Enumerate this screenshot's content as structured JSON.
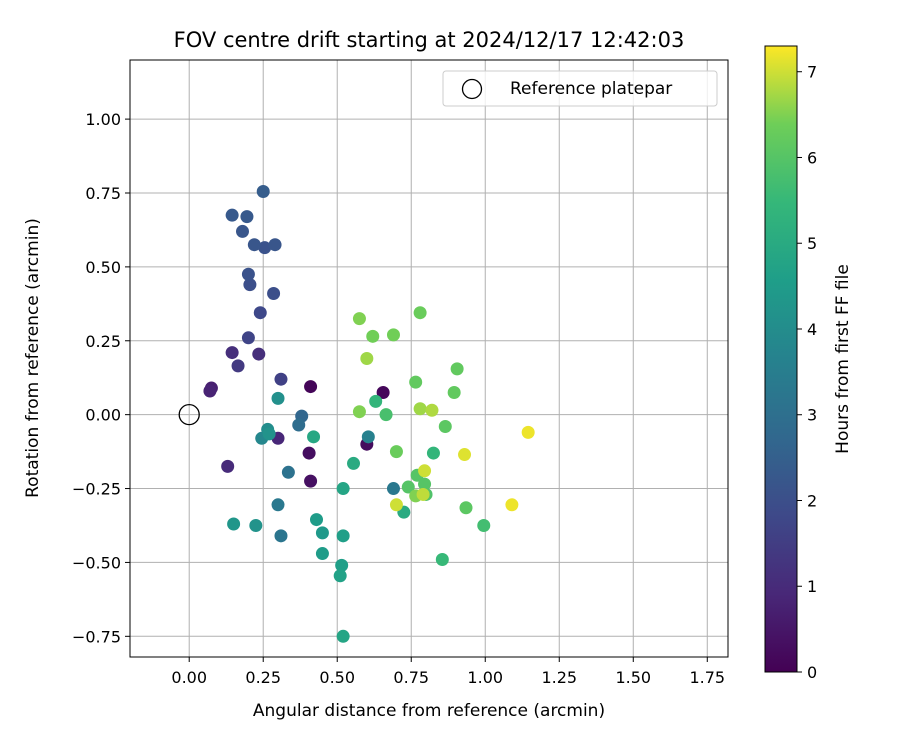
{
  "chart_data": {
    "type": "scatter",
    "title": "FOV centre drift starting at 2024/12/17 12:42:03",
    "xlabel": "Angular distance from reference (arcmin)",
    "ylabel": "Rotation from reference (arcmin)",
    "xlim": [
      -0.2,
      1.82
    ],
    "ylim": [
      -0.82,
      1.2
    ],
    "xticks": [
      0.0,
      0.25,
      0.5,
      0.75,
      1.0,
      1.25,
      1.5,
      1.75
    ],
    "xtick_labels": [
      "0.00",
      "0.25",
      "0.50",
      "0.75",
      "1.00",
      "1.25",
      "1.50",
      "1.75"
    ],
    "yticks": [
      -0.75,
      -0.5,
      -0.25,
      0.0,
      0.25,
      0.5,
      0.75,
      1.0
    ],
    "ytick_labels": [
      "−0.75",
      "−0.50",
      "−0.25",
      "0.00",
      "0.25",
      "0.50",
      "0.75",
      "1.00"
    ],
    "grid": true,
    "legend": {
      "position": "top-right",
      "entries": [
        "Reference platepar"
      ]
    },
    "reference_point": {
      "name": "Reference platepar",
      "x": 0.0,
      "y": 0.0
    },
    "colorbar": {
      "label": "Hours from first FF file",
      "colormap": "viridis",
      "range": [
        0,
        7.3
      ],
      "ticks": [
        0,
        1,
        2,
        3,
        4,
        5,
        6,
        7
      ],
      "tick_labels": [
        "0",
        "1",
        "2",
        "3",
        "4",
        "5",
        "6",
        "7"
      ]
    },
    "points": [
      {
        "x": 0.41,
        "y": 0.095,
        "h": 0.1
      },
      {
        "x": 0.655,
        "y": 0.075,
        "h": 0.15
      },
      {
        "x": 0.6,
        "y": -0.1,
        "h": 0.25
      },
      {
        "x": 0.405,
        "y": -0.13,
        "h": 0.3
      },
      {
        "x": 0.41,
        "y": -0.225,
        "h": 0.35
      },
      {
        "x": 0.075,
        "y": 0.09,
        "h": 0.7
      },
      {
        "x": 0.07,
        "y": 0.08,
        "h": 0.8
      },
      {
        "x": 0.3,
        "y": -0.08,
        "h": 0.9
      },
      {
        "x": 0.13,
        "y": -0.175,
        "h": 1.0
      },
      {
        "x": 0.145,
        "y": 0.21,
        "h": 1.1
      },
      {
        "x": 0.235,
        "y": 0.205,
        "h": 1.1
      },
      {
        "x": 0.165,
        "y": 0.165,
        "h": 1.4
      },
      {
        "x": 0.31,
        "y": 0.12,
        "h": 1.6
      },
      {
        "x": 0.2,
        "y": 0.26,
        "h": 1.7
      },
      {
        "x": 0.24,
        "y": 0.345,
        "h": 1.8
      },
      {
        "x": 0.285,
        "y": 0.41,
        "h": 2.0
      },
      {
        "x": 0.205,
        "y": 0.44,
        "h": 2.0
      },
      {
        "x": 0.2,
        "y": 0.475,
        "h": 2.1
      },
      {
        "x": 0.255,
        "y": 0.565,
        "h": 2.1
      },
      {
        "x": 0.22,
        "y": 0.575,
        "h": 2.2
      },
      {
        "x": 0.29,
        "y": 0.575,
        "h": 2.2
      },
      {
        "x": 0.18,
        "y": 0.62,
        "h": 2.2
      },
      {
        "x": 0.145,
        "y": 0.675,
        "h": 2.3
      },
      {
        "x": 0.195,
        "y": 0.67,
        "h": 2.3
      },
      {
        "x": 0.25,
        "y": 0.755,
        "h": 2.4
      },
      {
        "x": 0.38,
        "y": -0.005,
        "h": 2.7
      },
      {
        "x": 0.37,
        "y": -0.035,
        "h": 2.9
      },
      {
        "x": 0.335,
        "y": -0.195,
        "h": 3.1
      },
      {
        "x": 0.31,
        "y": -0.41,
        "h": 3.2
      },
      {
        "x": 0.3,
        "y": -0.305,
        "h": 3.3
      },
      {
        "x": 0.69,
        "y": -0.25,
        "h": 3.3
      },
      {
        "x": 0.605,
        "y": -0.075,
        "h": 3.6
      },
      {
        "x": 0.245,
        "y": -0.08,
        "h": 3.8
      },
      {
        "x": 0.265,
        "y": -0.05,
        "h": 4.0
      },
      {
        "x": 0.3,
        "y": 0.055,
        "h": 4.1
      },
      {
        "x": 0.27,
        "y": -0.065,
        "h": 4.2
      },
      {
        "x": 0.225,
        "y": -0.375,
        "h": 4.2
      },
      {
        "x": 0.15,
        "y": -0.37,
        "h": 4.3
      },
      {
        "x": 0.45,
        "y": -0.4,
        "h": 4.4
      },
      {
        "x": 0.45,
        "y": -0.47,
        "h": 4.5
      },
      {
        "x": 0.43,
        "y": -0.355,
        "h": 4.5
      },
      {
        "x": 0.52,
        "y": -0.41,
        "h": 4.6
      },
      {
        "x": 0.515,
        "y": -0.51,
        "h": 4.6
      },
      {
        "x": 0.51,
        "y": -0.545,
        "h": 4.7
      },
      {
        "x": 0.52,
        "y": -0.75,
        "h": 4.8
      },
      {
        "x": 0.52,
        "y": -0.25,
        "h": 4.8
      },
      {
        "x": 0.42,
        "y": -0.075,
        "h": 4.9
      },
      {
        "x": 0.555,
        "y": -0.165,
        "h": 5.0
      },
      {
        "x": 0.725,
        "y": -0.33,
        "h": 5.0
      },
      {
        "x": 0.63,
        "y": 0.045,
        "h": 5.4
      },
      {
        "x": 0.825,
        "y": -0.13,
        "h": 5.4
      },
      {
        "x": 0.855,
        "y": -0.49,
        "h": 5.5
      },
      {
        "x": 0.995,
        "y": -0.375,
        "h": 5.7
      },
      {
        "x": 0.665,
        "y": 0.0,
        "h": 5.8
      },
      {
        "x": 0.8,
        "y": -0.27,
        "h": 5.9
      },
      {
        "x": 0.74,
        "y": -0.245,
        "h": 6.0
      },
      {
        "x": 0.77,
        "y": -0.205,
        "h": 6.0
      },
      {
        "x": 0.795,
        "y": -0.235,
        "h": 6.0
      },
      {
        "x": 0.935,
        "y": -0.315,
        "h": 6.1
      },
      {
        "x": 0.865,
        "y": -0.04,
        "h": 6.1
      },
      {
        "x": 0.895,
        "y": 0.075,
        "h": 6.2
      },
      {
        "x": 0.905,
        "y": 0.155,
        "h": 6.2
      },
      {
        "x": 0.765,
        "y": 0.11,
        "h": 6.2
      },
      {
        "x": 0.7,
        "y": -0.125,
        "h": 6.3
      },
      {
        "x": 0.78,
        "y": 0.345,
        "h": 6.3
      },
      {
        "x": 0.69,
        "y": 0.27,
        "h": 6.4
      },
      {
        "x": 0.62,
        "y": 0.265,
        "h": 6.4
      },
      {
        "x": 0.575,
        "y": 0.325,
        "h": 6.5
      },
      {
        "x": 0.575,
        "y": 0.01,
        "h": 6.5
      },
      {
        "x": 0.765,
        "y": -0.275,
        "h": 6.5
      },
      {
        "x": 0.6,
        "y": 0.19,
        "h": 6.7
      },
      {
        "x": 0.78,
        "y": 0.02,
        "h": 6.7
      },
      {
        "x": 0.82,
        "y": 0.015,
        "h": 6.8
      },
      {
        "x": 0.79,
        "y": -0.27,
        "h": 6.9
      },
      {
        "x": 0.7,
        "y": -0.305,
        "h": 7.0
      },
      {
        "x": 0.795,
        "y": -0.19,
        "h": 7.0
      },
      {
        "x": 0.93,
        "y": -0.135,
        "h": 7.1
      },
      {
        "x": 1.09,
        "y": -0.305,
        "h": 7.2
      },
      {
        "x": 1.145,
        "y": -0.06,
        "h": 7.2
      }
    ]
  }
}
